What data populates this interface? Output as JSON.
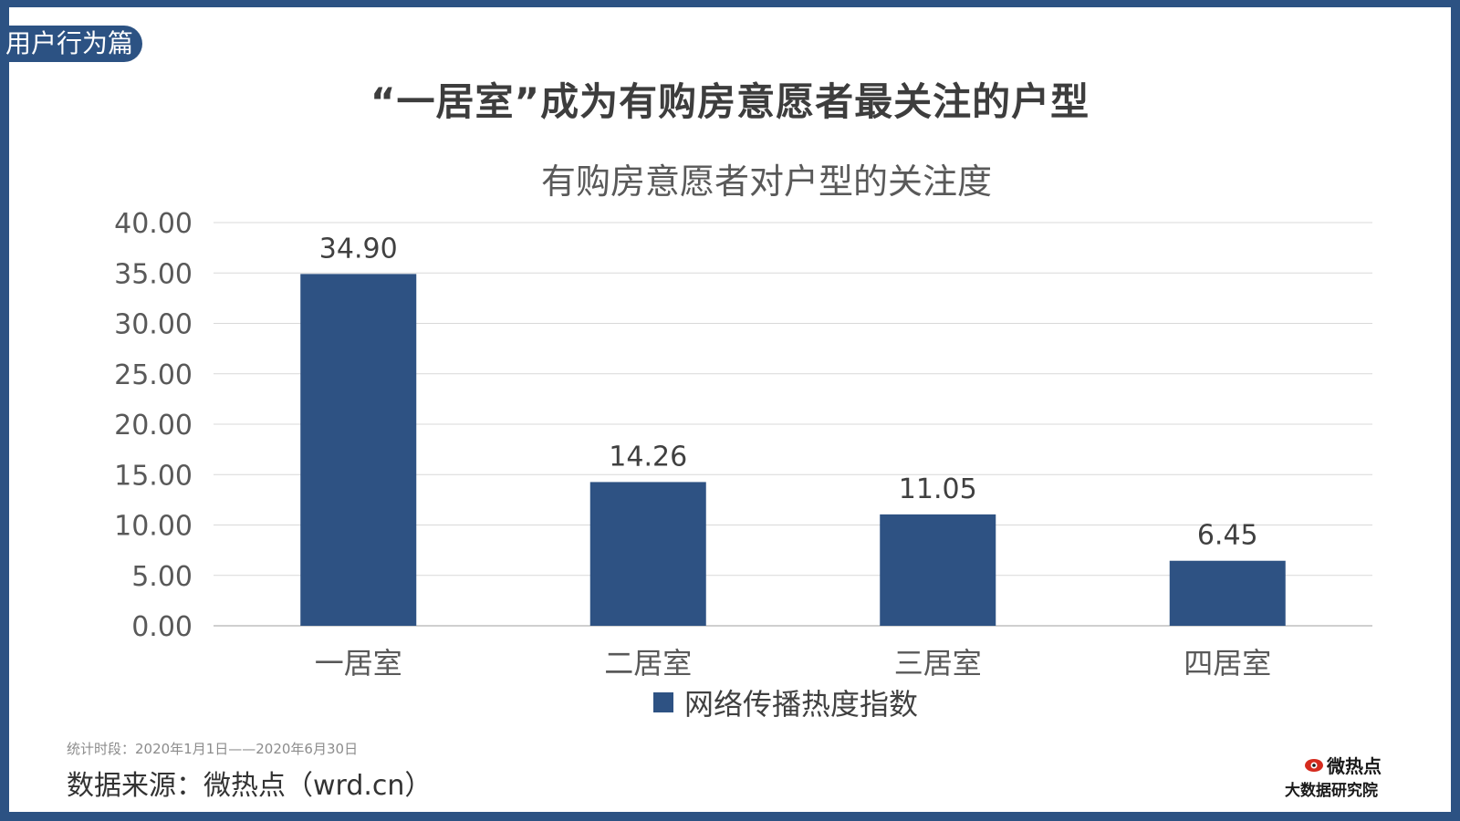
{
  "section_tag": "用户行为篇",
  "slide_title": "“一居室”成为有购房意愿者最关注的户型",
  "footer": {
    "stat_period": "统计时段：2020年1月1日——2020年6月30日",
    "data_source": "数据来源：微热点（wrd.cn）"
  },
  "brand": {
    "name": "微热点",
    "subtitle": "大数据研究院"
  },
  "colors": {
    "frame": "#2c5283",
    "bar": "#2e5283",
    "grid": "#d9d9d9",
    "axis_text": "#595959"
  },
  "chart_data": {
    "type": "bar",
    "title": "有购房意愿者对户型的关注度",
    "categories": [
      "一居室",
      "二居室",
      "三居室",
      "四居室"
    ],
    "series": [
      {
        "name": "网络传播热度指数",
        "values": [
          34.9,
          14.26,
          11.05,
          6.45
        ],
        "value_labels": [
          "34.90",
          "14.26",
          "11.05",
          "6.45"
        ]
      }
    ],
    "ylim": [
      0,
      40
    ],
    "y_ticks": [
      "0.00",
      "5.00",
      "10.00",
      "15.00",
      "20.00",
      "25.00",
      "30.00",
      "35.00",
      "40.00"
    ],
    "grid": true,
    "legend": "bottom"
  }
}
